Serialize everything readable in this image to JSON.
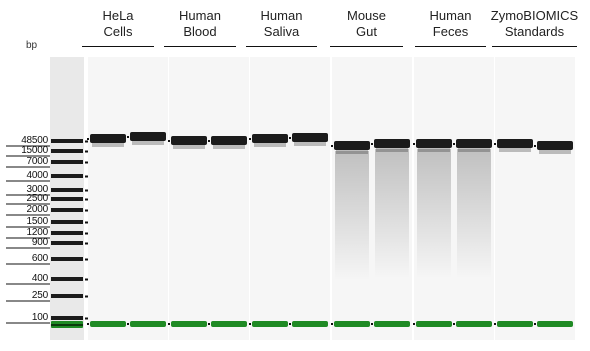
{
  "axis_label": "bp",
  "groups": [
    {
      "name": "HeLa\nCells"
    },
    {
      "name": "Human\nBlood"
    },
    {
      "name": "Human\nSaliva"
    },
    {
      "name": "Mouse\nGut"
    },
    {
      "name": "Human\nFeces"
    },
    {
      "name": "ZymoBIOMICS\nStandards"
    }
  ],
  "ladder": {
    "sizes": [
      "48500",
      "15000",
      "7000",
      "4000",
      "3000",
      "2500",
      "2000",
      "1500",
      "1200",
      "900",
      "600",
      "400",
      "250",
      "100"
    ]
  },
  "colors": {
    "marker_band": "#1f8a24",
    "dna_band": "#0a0a0a",
    "lane_bg": "#f6f6f6",
    "ladder_lane_bg": "#e9e9e9"
  }
}
